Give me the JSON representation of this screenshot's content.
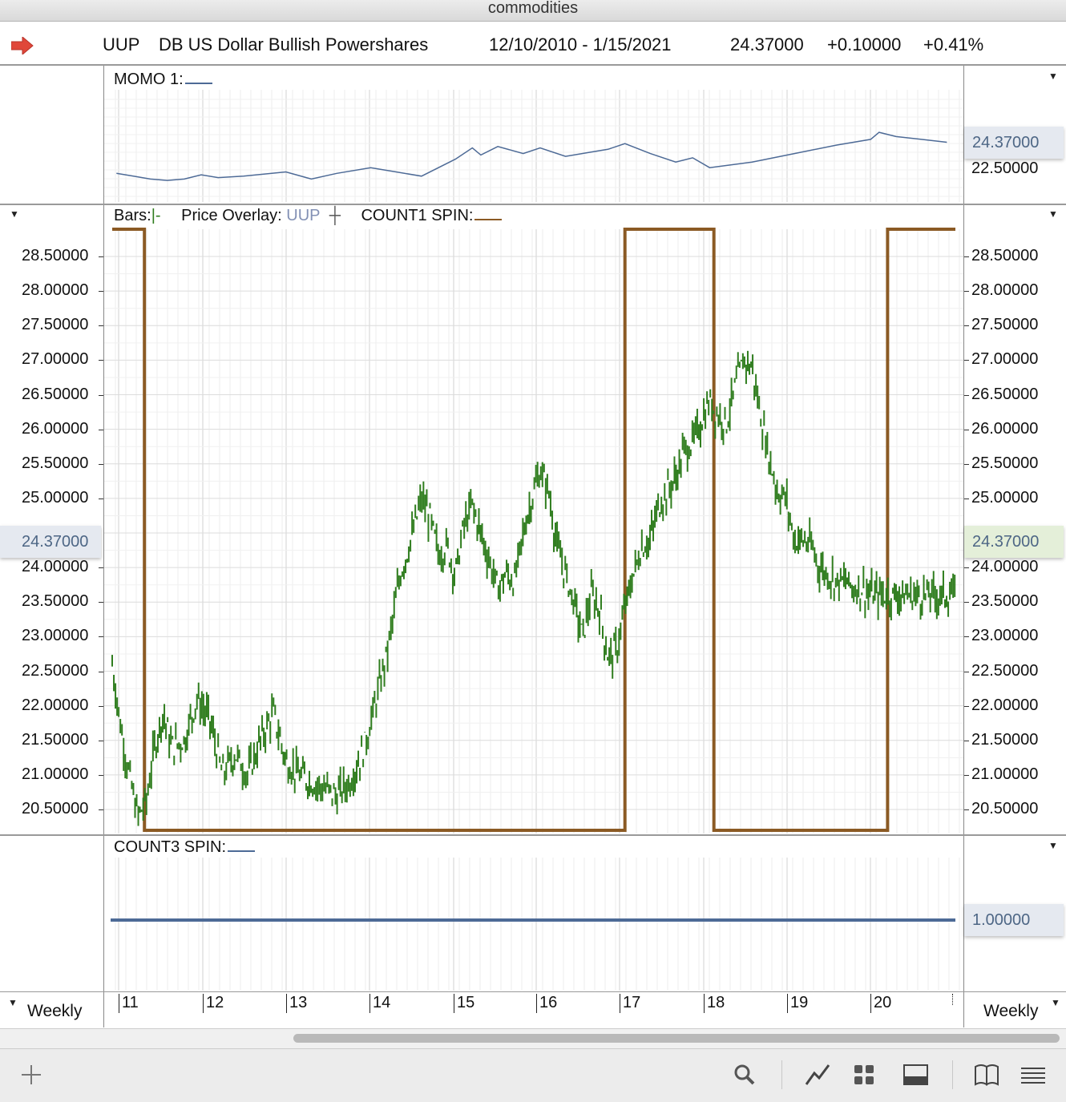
{
  "window": {
    "title": "commodities"
  },
  "header": {
    "symbol": "UUP",
    "name": "DB US Dollar Bullish Powershares",
    "date_range": "12/10/2010 - 1/15/2021",
    "last": "24.37000",
    "change": "+0.10000",
    "change_pct": "+0.41%"
  },
  "panes": {
    "momo": {
      "label": "MOMO 1:",
      "value_badge": "24.37000",
      "tick": "22.50000"
    },
    "price": {
      "bars_label": "Bars:",
      "bars_symbol": "|-",
      "overlay_label": "Price Overlay:",
      "overlay_symbol": "UUP",
      "count_label": "COUNT1 SPIN:",
      "value_badge": "24.37000",
      "ticks": [
        "28.50000",
        "28.00000",
        "27.50000",
        "27.00000",
        "26.50000",
        "26.00000",
        "25.50000",
        "25.00000",
        "24.00000",
        "23.50000",
        "23.00000",
        "22.50000",
        "22.00000",
        "21.50000",
        "21.00000",
        "20.50000"
      ]
    },
    "count3": {
      "label": "COUNT3 SPIN:",
      "value_badge": "1.00000"
    }
  },
  "x_axis": {
    "labels": [
      "11",
      "12",
      "13",
      "14",
      "15",
      "16",
      "17",
      "18",
      "19",
      "20"
    ],
    "period_left": "Weekly",
    "period_right": "Weekly"
  },
  "colors": {
    "price_bars": "#2f7d1e",
    "count_spin": "#8b5a24",
    "momo_line": "#4d6a96",
    "count3_line": "#4d6a96",
    "badge": "#e5e9f0",
    "badge_green": "#e4efd9"
  },
  "toolbar": {
    "icons": [
      "plus-icon",
      "search-icon",
      "line-chart-icon",
      "grid-icon",
      "panel-icon",
      "book-icon",
      "list-icon"
    ]
  },
  "chart_data": [
    {
      "type": "line",
      "title": "MOMO 1",
      "x": [
        2011.0,
        2011.2,
        2011.4,
        2011.6,
        2011.8,
        2012.0,
        2012.2,
        2012.5,
        2013.0,
        2013.3,
        2013.6,
        2014.0,
        2014.3,
        2014.6,
        2015.0,
        2015.2,
        2015.3,
        2015.5,
        2015.8,
        2016.0,
        2016.3,
        2016.6,
        2016.8,
        2017.0,
        2017.3,
        2017.6,
        2017.8,
        2018.0,
        2018.5,
        2019.0,
        2019.5,
        2019.9,
        2020.0,
        2020.2,
        2020.5,
        2020.8
      ],
      "values": [
        22.2,
        22.0,
        21.8,
        21.7,
        21.8,
        22.1,
        21.9,
        22.0,
        22.3,
        21.8,
        22.2,
        22.6,
        22.3,
        22.0,
        23.2,
        24.0,
        23.5,
        24.1,
        23.6,
        24.0,
        23.4,
        23.7,
        23.9,
        24.3,
        23.6,
        23.0,
        23.3,
        22.6,
        23.0,
        23.6,
        24.2,
        24.6,
        25.1,
        24.8,
        24.6,
        24.4
      ],
      "value_badge": 24.37,
      "ticks": [
        22.5
      ]
    },
    {
      "type": "line",
      "title": "Price Overlay: UUP (weekly bars)",
      "x": [
        2010.95,
        2011.05,
        2011.15,
        2011.25,
        2011.35,
        2011.45,
        2011.55,
        2011.65,
        2011.8,
        2011.95,
        2012.1,
        2012.25,
        2012.4,
        2012.55,
        2012.7,
        2012.85,
        2013.0,
        2013.15,
        2013.3,
        2013.45,
        2013.6,
        2013.75,
        2013.9,
        2014.05,
        2014.2,
        2014.35,
        2014.5,
        2014.6,
        2014.7,
        2014.8,
        2014.9,
        2015.0,
        2015.1,
        2015.2,
        2015.3,
        2015.4,
        2015.5,
        2015.6,
        2015.7,
        2015.8,
        2015.9,
        2016.0,
        2016.1,
        2016.2,
        2016.3,
        2016.4,
        2016.5,
        2016.6,
        2016.7,
        2016.8,
        2016.9,
        2017.0,
        2017.1,
        2017.2,
        2017.3,
        2017.4,
        2017.5,
        2017.6,
        2017.7,
        2017.8,
        2017.9,
        2018.0,
        2018.1,
        2018.2,
        2018.3,
        2018.4,
        2018.5,
        2018.6,
        2018.7,
        2018.8,
        2018.9,
        2019.0,
        2019.1,
        2019.2,
        2019.3,
        2019.4,
        2019.5,
        2019.6,
        2019.7,
        2019.8,
        2019.9,
        2020.0,
        2020.05,
        2020.1,
        2020.2,
        2020.3,
        2020.4,
        2020.5,
        2020.6,
        2020.7,
        2020.8,
        2020.9
      ],
      "values": [
        22.6,
        21.7,
        21.0,
        20.4,
        20.6,
        21.4,
        21.9,
        21.4,
        21.5,
        22.1,
        21.8,
        21.0,
        21.3,
        21.0,
        21.5,
        21.9,
        21.2,
        21.0,
        20.9,
        20.8,
        20.7,
        20.9,
        21.3,
        22.0,
        22.8,
        23.9,
        24.5,
        25.0,
        24.7,
        24.2,
        24.3,
        23.9,
        24.6,
        24.9,
        24.5,
        24.1,
        23.7,
        23.9,
        23.8,
        24.5,
        25.0,
        25.4,
        25.1,
        24.3,
        23.9,
        23.5,
        23.0,
        23.6,
        23.4,
        22.7,
        22.8,
        23.4,
        23.9,
        24.3,
        24.4,
        24.9,
        25.1,
        25.3,
        25.7,
        25.8,
        26.1,
        26.4,
        26.2,
        26.1,
        26.6,
        27.0,
        26.9,
        26.2,
        25.6,
        25.1,
        25.0,
        24.4,
        24.4,
        24.3,
        24.0,
        23.9,
        23.8,
        23.8,
        23.7,
        23.7,
        23.6,
        23.6,
        23.6,
        23.6,
        23.6,
        23.6,
        23.6,
        23.6,
        23.6,
        23.6,
        23.6,
        23.6
      ],
      "ylim": [
        20.2,
        28.9
      ],
      "ticks": [
        28.5,
        28.0,
        27.5,
        27.0,
        26.5,
        26.0,
        25.5,
        25.0,
        24.0,
        23.5,
        23.0,
        22.5,
        22.0,
        21.5,
        21.0,
        20.5
      ],
      "value_badge": 24.37
    },
    {
      "type": "line",
      "title": "COUNT1 SPIN",
      "x": [
        2010.95,
        2011.33,
        2011.33,
        2017.0,
        2017.0,
        2018.05,
        2018.05,
        2020.1,
        2020.1,
        2020.9
      ],
      "values": [
        1,
        1,
        0,
        0,
        1,
        1,
        0,
        0,
        1,
        1
      ]
    },
    {
      "type": "line",
      "title": "COUNT3 SPIN",
      "x": [
        2010.95,
        2020.9
      ],
      "values": [
        1.0,
        1.0
      ],
      "value_badge": 1.0
    }
  ]
}
